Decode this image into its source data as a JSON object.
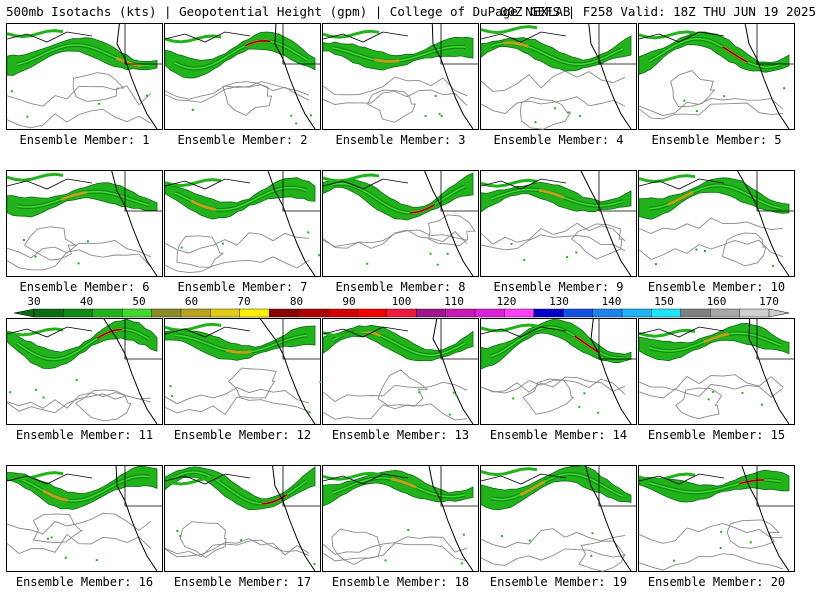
{
  "header": {
    "segments": [
      "500mb Isotachs (kts) | Geopotential Height (gpm) | College of DuPage NEXLAB",
      "00Z GEFS | F258 Valid: 18Z THU JUN 19 2025"
    ]
  },
  "panels": [
    {
      "label": "Ensemble Member: 1"
    },
    {
      "label": "Ensemble Member: 2"
    },
    {
      "label": "Ensemble Member: 3"
    },
    {
      "label": "Ensemble Member: 4"
    },
    {
      "label": "Ensemble Member: 5"
    },
    {
      "label": "Ensemble Member: 6"
    },
    {
      "label": "Ensemble Member: 7"
    },
    {
      "label": "Ensemble Member: 8"
    },
    {
      "label": "Ensemble Member: 9"
    },
    {
      "label": "Ensemble Member: 10"
    },
    {
      "label": "Ensemble Member: 11"
    },
    {
      "label": "Ensemble Member: 12"
    },
    {
      "label": "Ensemble Member: 13"
    },
    {
      "label": "Ensemble Member: 14"
    },
    {
      "label": "Ensemble Member: 15"
    },
    {
      "label": "Ensemble Member: 16"
    },
    {
      "label": "Ensemble Member: 17"
    },
    {
      "label": "Ensemble Member: 18"
    },
    {
      "label": "Ensemble Member: 19"
    },
    {
      "label": "Ensemble Member: 20"
    }
  ],
  "colorbar": {
    "ticks": [
      "30",
      "40",
      "50",
      "60",
      "70",
      "80",
      "90",
      "100",
      "110",
      "120",
      "130",
      "140",
      "150",
      "160",
      "170"
    ],
    "colors": [
      "#0b6b12",
      "#128a18",
      "#22b31c",
      "#3fdc2c",
      "#8b8b2a",
      "#b8a31c",
      "#e0cc10",
      "#fff000",
      "#8b0000",
      "#b00000",
      "#d40000",
      "#f50000",
      "#ee1c3c",
      "#a0148c",
      "#c818b4",
      "#e020d8",
      "#ff40ff",
      "#0000c8",
      "#1450e6",
      "#1e82f0",
      "#1eb4f5",
      "#1ee6fa",
      "#808080",
      "#a8a8a8",
      "#d0d0d0"
    ]
  }
}
